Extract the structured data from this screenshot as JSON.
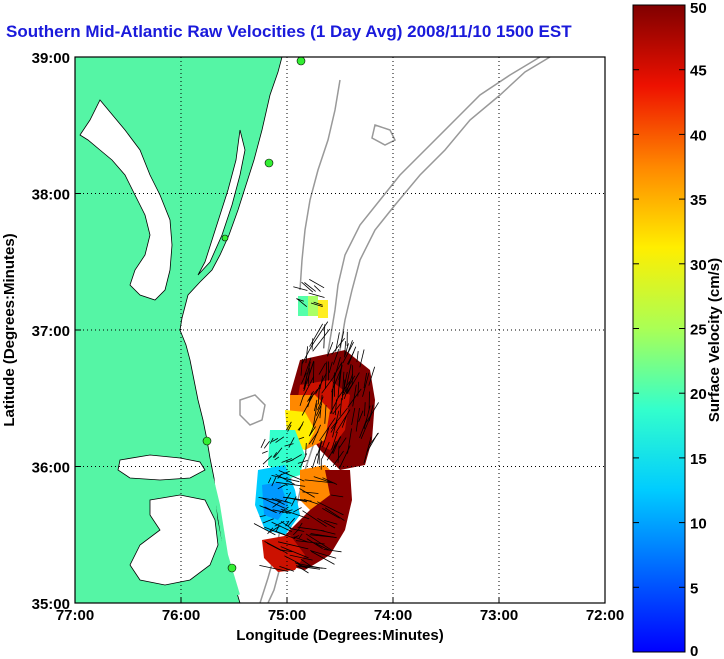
{
  "title": "Southern Mid-Atlantic Raw Velocities (1 Day Avg) 2008/11/10 1500 EST",
  "x_axis": {
    "label": "Longitude (Degrees:Minutes)",
    "ticks": [
      "77:00",
      "76:00",
      "75:00",
      "74:00",
      "73:00",
      "72:00"
    ]
  },
  "y_axis": {
    "label": "Latitude (Degrees:Minutes)",
    "ticks": [
      "39:00",
      "38:00",
      "37:00",
      "36:00",
      "35:00"
    ]
  },
  "colorbar": {
    "label": "Surface Velocity (cm/s)",
    "ticks": [
      "50",
      "45",
      "40",
      "35",
      "30",
      "25",
      "20",
      "15",
      "10",
      "5",
      "0"
    ],
    "min": 0,
    "max": 50
  },
  "colors": {
    "land": "#55f5a5",
    "title": "#1a1adb",
    "bathymetry": "#999999",
    "station": "#33ee33"
  }
}
